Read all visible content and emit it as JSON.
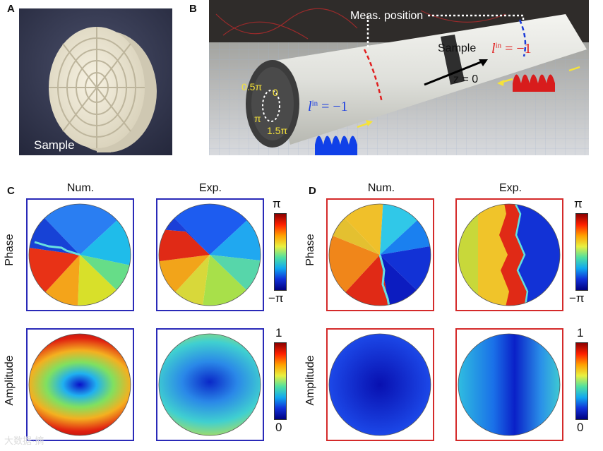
{
  "panel_a": {
    "label": "A",
    "caption": "Sample"
  },
  "panel_b": {
    "label": "B",
    "meas_position": "Meas. position",
    "sample_label": "Sample",
    "z_label": "z = 0",
    "phase_marks": [
      "0.5π",
      "0",
      "π",
      "1.5π"
    ],
    "l_in_left": "l",
    "l_in_left_sup": "in",
    "l_in_left_val": " = −1",
    "l_in_right": "l",
    "l_in_right_sup": "in",
    "l_in_right_val": " = −1"
  },
  "panel_c": {
    "label": "C",
    "col_num": "Num.",
    "col_exp": "Exp.",
    "row_phase": "Phase",
    "row_amp": "Amplitude",
    "phase_cb_top": "π",
    "phase_cb_bottom": "−π",
    "amp_cb_top": "1",
    "amp_cb_bottom": "0"
  },
  "panel_d": {
    "label": "D",
    "col_num": "Num.",
    "col_exp": "Exp.",
    "row_phase": "Phase",
    "row_amp": "Amplitude",
    "phase_cb_top": "π",
    "phase_cb_bottom": "−π",
    "amp_cb_top": "1",
    "amp_cb_bottom": "0"
  },
  "colors": {
    "frame_c": "#2a2ab8",
    "frame_d": "#d42a2a"
  },
  "watermark": "大数据·摘"
}
